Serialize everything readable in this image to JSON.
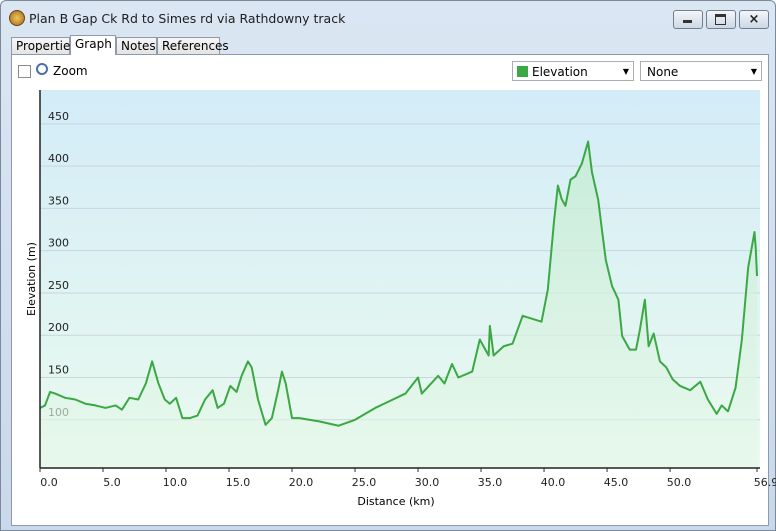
{
  "window": {
    "title": "Plan B Gap Ck Rd to Simes rd via Rathdowny track"
  },
  "tabs": [
    "Properties",
    "Graph",
    "Notes",
    "References"
  ],
  "toolbar": {
    "zoom_label": "Zoom",
    "secondary_select": "None"
  },
  "chart_data": {
    "type": "line",
    "xlabel": "Distance (km)",
    "ylabel": "Elevation (m)",
    "x": [
      0,
      0.4,
      0.8,
      1.2,
      2.0,
      2.8,
      3.6,
      4.4,
      5.2,
      6.0,
      6.5,
      7.1,
      7.8,
      8.4,
      8.9,
      9.4,
      9.9,
      10.3,
      10.8,
      11.3,
      11.9,
      12.5,
      13.1,
      13.7,
      14.1,
      14.6,
      15.1,
      15.6,
      16.0,
      16.5,
      16.8,
      17.3,
      17.9,
      18.4,
      18.9,
      19.2,
      19.5,
      20.0,
      20.6,
      22.2,
      23.7,
      25.0,
      26.6,
      29.0,
      30.0,
      30.3,
      31.6,
      32.1,
      32.7,
      33.2,
      34.3,
      34.9,
      35.6,
      35.7,
      36.0,
      36.8,
      37.5,
      38.3,
      39.8,
      40.3,
      40.8,
      41.1,
      41.4,
      41.7,
      42.1,
      42.5,
      43.0,
      43.5,
      43.8,
      44.3,
      44.6,
      44.9,
      45.4,
      45.9,
      46.2,
      46.8,
      47.3,
      47.6,
      48.0,
      48.3,
      48.7,
      49.2,
      49.7,
      50.2,
      50.8,
      51.6,
      52.4,
      53.0,
      53.7,
      54.1,
      54.6,
      55.2,
      55.7,
      56.2,
      56.7,
      56.8,
      56.9
    ],
    "series": [
      {
        "name": "Elevation",
        "color": "#3aa843",
        "values": [
          114,
          117,
          133,
          131,
          126,
          124,
          119,
          117,
          114,
          117,
          112,
          126,
          124,
          143,
          169,
          143,
          124,
          119,
          126,
          102,
          102,
          105,
          124,
          135,
          114,
          119,
          140,
          133,
          152,
          169,
          162,
          124,
          94,
          102,
          135,
          157,
          143,
          102,
          102,
          98,
          93,
          100,
          114,
          131,
          150,
          131,
          152,
          143,
          166,
          150,
          157,
          195,
          176,
          211,
          176,
          187,
          190,
          223,
          216,
          254,
          336,
          377,
          361,
          353,
          384,
          388,
          403,
          429,
          393,
          360,
          324,
          289,
          258,
          242,
          199,
          183,
          183,
          206,
          242,
          187,
          202,
          169,
          162,
          148,
          140,
          135,
          145,
          124,
          107,
          117,
          110,
          138,
          195,
          280,
          322,
          303,
          270
        ]
      }
    ],
    "xlim": [
      0,
      56.9
    ],
    "ylim": [
      43,
      490
    ],
    "xticks": [
      {
        "value": 0,
        "label": "0.0"
      },
      {
        "value": 5,
        "label": "5.0"
      },
      {
        "value": 10,
        "label": "10.0"
      },
      {
        "value": 15,
        "label": "15.0"
      },
      {
        "value": 20,
        "label": "20.0"
      },
      {
        "value": 25,
        "label": "25.0"
      },
      {
        "value": 30,
        "label": "30.0"
      },
      {
        "value": 35,
        "label": "35.0"
      },
      {
        "value": 40,
        "label": "40.0"
      },
      {
        "value": 45,
        "label": "45.0"
      },
      {
        "value": 50,
        "label": "50.0"
      },
      56.9
    ],
    "yticks": [
      100,
      150,
      200,
      250,
      300,
      350,
      400,
      450
    ],
    "grid": true
  }
}
